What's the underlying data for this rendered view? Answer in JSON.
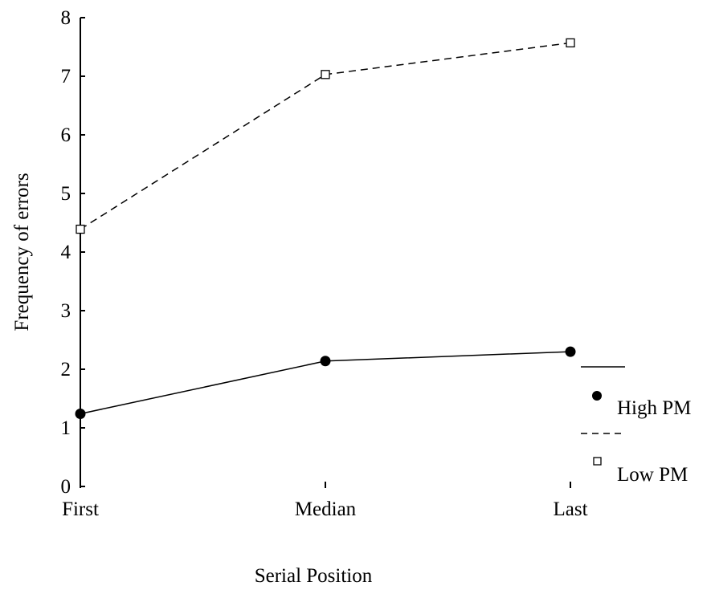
{
  "chart_data": {
    "type": "line",
    "title": "",
    "xlabel": "Serial Position",
    "ylabel": "Frequency of errors",
    "categories": [
      "First",
      "Median",
      "Last"
    ],
    "ylim": [
      0,
      8
    ],
    "yticks": [
      "0",
      "1",
      "2",
      "3",
      "4",
      "5",
      "6",
      "7",
      "8"
    ],
    "grid": false,
    "legend_position": "right",
    "series": [
      {
        "name": "High PM",
        "values": [
          1.24,
          2.14,
          2.3
        ],
        "line_style": "solid",
        "marker": "filled-circle",
        "color": "#000000"
      },
      {
        "name": "Low PM",
        "values": [
          4.39,
          7.03,
          7.57
        ],
        "line_style": "dashed",
        "marker": "open-square",
        "color": "#000000"
      }
    ]
  }
}
